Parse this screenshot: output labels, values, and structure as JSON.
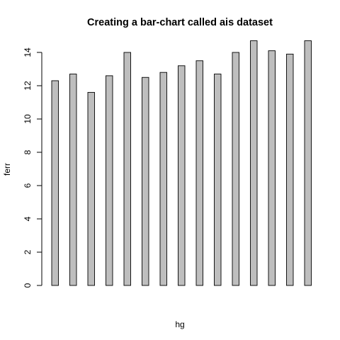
{
  "chart_data": {
    "type": "bar",
    "title": "Creating a bar-chart called ais dataset",
    "xlabel": "hg",
    "ylabel": "ferr",
    "ylim": [
      0,
      15
    ],
    "yticks": [
      "0",
      "2",
      "4",
      "6",
      "8",
      "10",
      "12",
      "14"
    ],
    "values": [
      12.3,
      12.7,
      11.6,
      12.6,
      14.0,
      12.5,
      12.8,
      13.2,
      13.5,
      12.7,
      14.0,
      14.7,
      14.1,
      13.9,
      14.7
    ],
    "bar_color": "#bebebe",
    "border_color": "#000000",
    "grid": false,
    "legend": "none"
  }
}
